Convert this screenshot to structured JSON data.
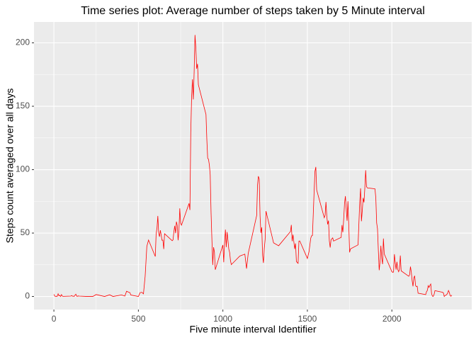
{
  "chart_data": {
    "type": "line",
    "title": "Time series plot: Average number of steps taken by 5 Minute interval",
    "x_label": "Five minute interval Identifier",
    "y_label": "Steps count averaged over all days",
    "x": [
      0,
      5,
      10,
      15,
      20,
      25,
      30,
      35,
      40,
      45,
      50,
      55,
      100,
      105,
      110,
      115,
      120,
      125,
      130,
      135,
      140,
      145,
      150,
      200,
      230,
      250,
      300,
      330,
      350,
      400,
      420,
      430,
      440,
      450,
      455,
      500,
      510,
      520,
      530,
      540,
      550,
      560,
      600,
      605,
      610,
      615,
      620,
      625,
      630,
      640,
      645,
      650,
      655,
      700,
      705,
      710,
      715,
      720,
      725,
      730,
      735,
      740,
      745,
      750,
      755,
      800,
      805,
      810,
      815,
      820,
      825,
      830,
      835,
      840,
      845,
      850,
      855,
      900,
      905,
      910,
      915,
      920,
      925,
      930,
      935,
      940,
      945,
      950,
      955,
      1000,
      1005,
      1010,
      1015,
      1020,
      1025,
      1030,
      1035,
      1040,
      1045,
      1050,
      1100,
      1130,
      1140,
      1150,
      1200,
      1205,
      1210,
      1215,
      1220,
      1225,
      1230,
      1235,
      1240,
      1245,
      1250,
      1255,
      1300,
      1330,
      1400,
      1405,
      1410,
      1415,
      1425,
      1430,
      1435,
      1445,
      1450,
      1455,
      1500,
      1510,
      1520,
      1525,
      1530,
      1535,
      1540,
      1545,
      1550,
      1555,
      1600,
      1605,
      1610,
      1615,
      1620,
      1625,
      1630,
      1635,
      1640,
      1645,
      1650,
      1655,
      1700,
      1705,
      1710,
      1715,
      1720,
      1725,
      1730,
      1735,
      1740,
      1745,
      1750,
      1755,
      1800,
      1805,
      1810,
      1815,
      1820,
      1825,
      1830,
      1835,
      1840,
      1845,
      1850,
      1855,
      1900,
      1905,
      1910,
      1915,
      1920,
      1925,
      1930,
      1935,
      1940,
      1945,
      1950,
      1955,
      2000,
      2005,
      2010,
      2015,
      2020,
      2025,
      2030,
      2035,
      2040,
      2045,
      2050,
      2055,
      2100,
      2105,
      2110,
      2115,
      2120,
      2125,
      2130,
      2135,
      2140,
      2145,
      2150,
      2155,
      2200,
      2205,
      2210,
      2215,
      2220,
      2225,
      2230,
      2235,
      2240,
      2245,
      2250,
      2255,
      2300,
      2305,
      2310,
      2315,
      2320,
      2325,
      2330,
      2335,
      2340,
      2345,
      2350,
      2355
    ],
    "series": [
      {
        "name": "steps",
        "color": "#ff0000",
        "values": [
          1.7,
          0.3,
          0.1,
          0.2,
          0.1,
          2.1,
          0.5,
          0.9,
          0,
          1.5,
          0.3,
          0.1,
          0.3,
          0.7,
          0.2,
          0.3,
          0,
          1.1,
          1.8,
          0.2,
          0.2,
          0.4,
          0.3,
          0,
          0,
          1.5,
          0,
          1.3,
          0,
          1.2,
          0.3,
          4.1,
          3.5,
          3,
          1.1,
          0,
          3,
          3.3,
          2.1,
          16,
          39.5,
          44.5,
          31.5,
          49.3,
          53.8,
          63.5,
          50,
          47.1,
          52.2,
          44.3,
          44.5,
          37.4,
          49.5,
          44,
          44.7,
          51,
          55.7,
          49.9,
          59,
          56,
          44.3,
          52.4,
          69.5,
          57.8,
          56.2,
          73.4,
          68.2,
          129.4,
          157.5,
          171.2,
          155.4,
          177.3,
          206.2,
          195.9,
          179.6,
          183.4,
          167,
          143.5,
          124,
          109.1,
          108.1,
          103.7,
          95.9,
          66.2,
          45.2,
          24.8,
          38.8,
          35,
          21.1,
          40.6,
          27,
          42.4,
          52.7,
          38.9,
          50.8,
          44.3,
          37.4,
          34.7,
          28.3,
          25.1,
          31.9,
          33.4,
          22,
          34,
          63.9,
          87.7,
          94.8,
          92.8,
          63.4,
          50.2,
          54.5,
          32.4,
          26.5,
          37.7,
          45,
          67.3,
          42.3,
          40,
          51.2,
          56.4,
          43.6,
          48.7,
          37.5,
          41.8,
          27.5,
          26.1,
          43.7,
          43.8,
          30,
          35.5,
          46,
          47.8,
          48.1,
          65.3,
          82.9,
          98.7,
          102.1,
          84,
          62.1,
          64.1,
          74.5,
          63.2,
          56.9,
          59.8,
          43.9,
          38.6,
          44.7,
          45.5,
          46.2,
          43.7,
          46.6,
          56.3,
          50.7,
          61.2,
          73.4,
          79.1,
          68.9,
          59.7,
          75.1,
          56.5,
          34.8,
          37.5,
          40.7,
          58,
          74.7,
          85.3,
          59.3,
          67.8,
          77.7,
          74.2,
          85.3,
          99.5,
          86.6,
          85.6,
          84.9,
          77.8,
          58,
          53.4,
          36.3,
          20.7,
          27.4,
          40,
          30.2,
          25.5,
          45.7,
          33.5,
          19.6,
          19,
          19.3,
          33.3,
          26.8,
          21.2,
          27.3,
          21.3,
          19.5,
          21.3,
          32.3,
          20.2,
          15.9,
          17.2,
          23.5,
          19.2,
          12.5,
          8,
          14.7,
          16.3,
          8.7,
          7.8,
          8.1,
          2.6,
          1.5,
          3.7,
          4.8,
          8.5,
          7.1,
          8.7,
          9.8,
          2.2,
          0.3,
          0.1,
          1.6,
          4.6,
          3.3,
          2.8,
          0,
          0.8,
          1,
          1.6,
          2.6,
          4.7,
          3.3,
          0.6,
          0.2,
          1.1
        ]
      }
    ],
    "xlim": [
      -117.75,
      2472.75
    ],
    "xticks": [
      0,
      500,
      1000,
      1500,
      2000
    ],
    "ylim": [
      -10.31,
      216.48
    ],
    "yticks": [
      0,
      50,
      100,
      150,
      200
    ],
    "grid": true
  }
}
